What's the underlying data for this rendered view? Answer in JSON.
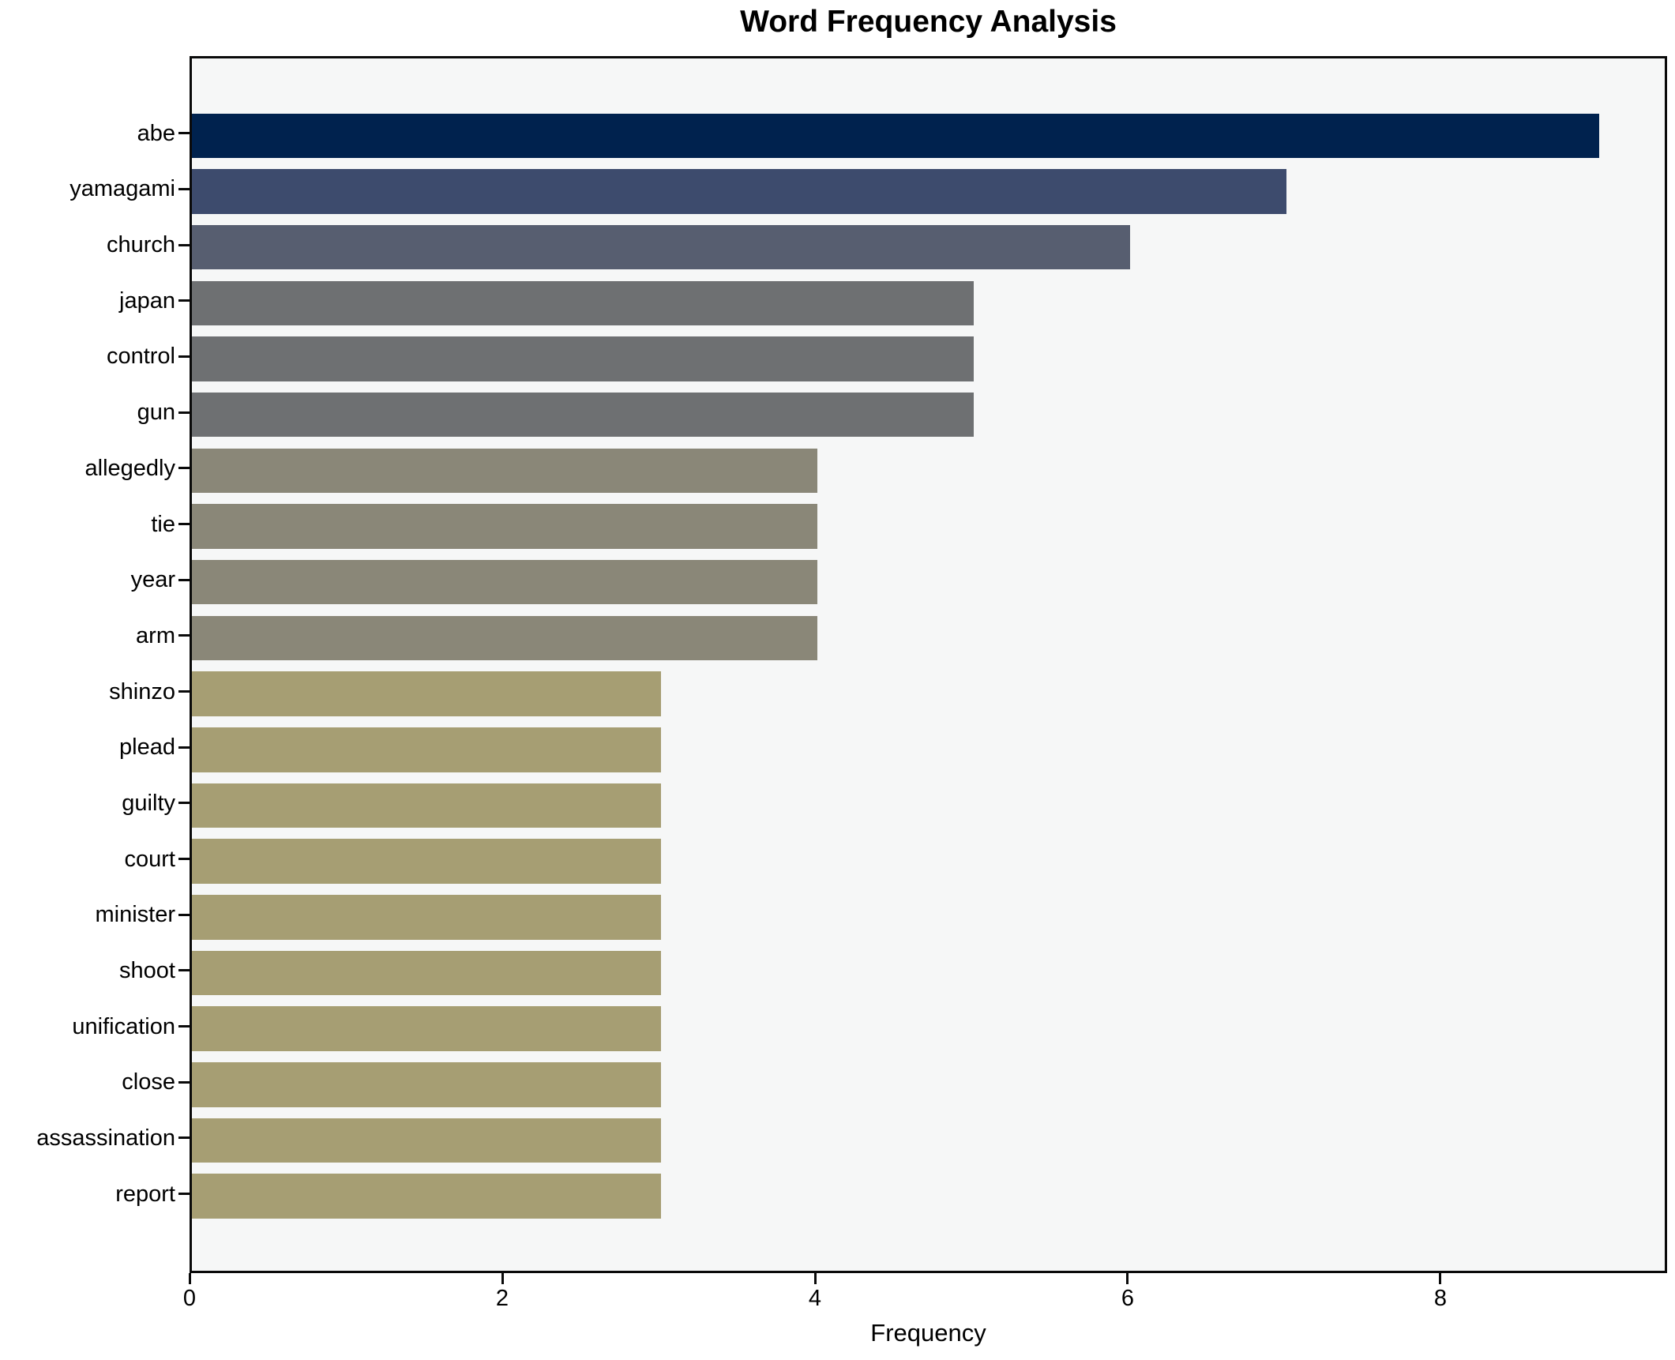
{
  "chart_data": {
    "type": "bar",
    "orientation": "horizontal",
    "title": "Word Frequency Analysis",
    "xlabel": "Frequency",
    "ylabel": "",
    "categories": [
      "abe",
      "yamagami",
      "church",
      "japan",
      "control",
      "gun",
      "allegedly",
      "tie",
      "year",
      "arm",
      "shinzo",
      "plead",
      "guilty",
      "court",
      "minister",
      "shoot",
      "unification",
      "close",
      "assassination",
      "report"
    ],
    "values": [
      9,
      7,
      6,
      5,
      5,
      5,
      4,
      4,
      4,
      4,
      3,
      3,
      3,
      3,
      3,
      3,
      3,
      3,
      3,
      3
    ],
    "bar_colors": [
      "#00224e",
      "#3d4b6d",
      "#575e70",
      "#6e7072",
      "#6e7072",
      "#6e7072",
      "#8a8778",
      "#8a8778",
      "#8a8778",
      "#8a8778",
      "#a69e73",
      "#a69e73",
      "#a69e73",
      "#a69e73",
      "#a69e73",
      "#a69e73",
      "#a69e73",
      "#a69e73",
      "#a69e73",
      "#a69e73"
    ],
    "xticks": [
      0,
      2,
      4,
      6,
      8
    ],
    "xlim": [
      0,
      9.45
    ],
    "grid": false,
    "legend": null,
    "plot_background": "#f6f7f7",
    "figure_background": "#ffffff",
    "axis_color": "#0a0a0a"
  }
}
